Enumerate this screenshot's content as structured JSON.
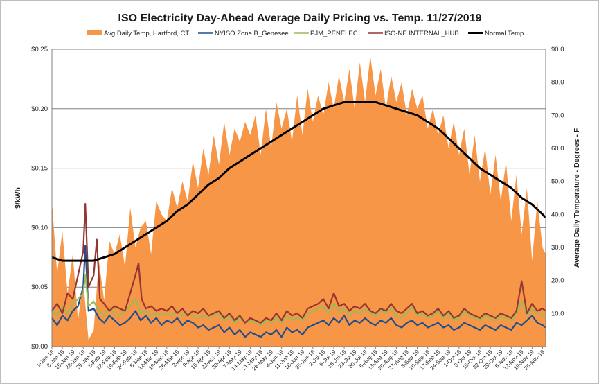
{
  "chart_data": {
    "type": "line",
    "title": "ISO Electricity Day-Ahead Average Daily Pricing vs. Temp. 11/27/2019",
    "ylabel": "$/kWh",
    "y2label": "Average Daily Temperature - Degrees - F",
    "ylim": [
      0,
      0.25
    ],
    "y2lim": [
      0,
      90
    ],
    "yticks": [
      "$0.00",
      "$0.05",
      "$0.10",
      "$0.15",
      "$0.20",
      "$0.25"
    ],
    "y2ticks": [
      "-",
      "10.0",
      "20.0",
      "30.0",
      "40.0",
      "50.0",
      "60.0",
      "70.0",
      "80.0",
      "90.0"
    ],
    "grid": true,
    "legend_position": "top",
    "x_tick_labels": [
      "1-Jan-19",
      "8-Jan-19",
      "15-Jan-19",
      "22-Jan-19",
      "29-Jan-19",
      "5-Feb-19",
      "12-Feb-19",
      "19-Feb-19",
      "26-Feb-19",
      "5-Mar-19",
      "12-Mar-19",
      "19-Mar-19",
      "26-Mar-19",
      "2-Apr-19",
      "9-Apr-19",
      "16-Apr-19",
      "23-Apr-19",
      "30-Apr-19",
      "7-May-19",
      "14-May-19",
      "21-May-19",
      "28-May-19",
      "4-Jun-19",
      "11-Jun-19",
      "18-Jun-19",
      "25-Jun-19",
      "2-Jul-19",
      "9-Jul-19",
      "16-Jul-19",
      "23-Jul-19",
      "30-Jul-19",
      "6-Aug-19",
      "13-Aug-19",
      "20-Aug-19",
      "27-Aug-19",
      "3-Sep-19",
      "10-Sep-19",
      "17-Sep-19",
      "24-Sep-19",
      "1-Oct-19",
      "8-Oct-19",
      "15-Oct-19",
      "22-Oct-19",
      "29-Oct-19",
      "5-Nov-19",
      "12-Nov-19",
      "19-Nov-19",
      "26-Nov-19"
    ],
    "x_range": [
      "1-Jan-19",
      "27-Nov-19"
    ],
    "series": [
      {
        "name": "Avg Daily Temp, Hartford, CT",
        "kind": "area",
        "axis": "right",
        "color": "#f79646",
        "x_weeks": [
          0,
          0.5,
          1,
          1.5,
          2,
          2.5,
          3,
          3.5,
          4,
          4.5,
          5,
          5.5,
          6,
          6.5,
          7,
          7.5,
          8,
          8.5,
          9,
          9.5,
          10,
          10.5,
          11,
          11.5,
          12,
          12.5,
          13,
          13.5,
          14,
          14.5,
          15,
          15.5,
          16,
          16.5,
          17,
          17.5,
          18,
          18.5,
          19,
          19.5,
          20,
          20.5,
          21,
          21.5,
          22,
          22.5,
          23,
          23.5,
          24,
          24.5,
          25,
          25.5,
          26,
          26.5,
          27,
          27.5,
          28,
          28.5,
          29,
          29.5,
          30,
          30.5,
          31,
          31.5,
          32,
          32.5,
          33,
          33.5,
          34,
          34.5,
          35,
          35.5,
          36,
          36.5,
          37,
          37.5,
          38,
          38.5,
          39,
          39.5,
          40,
          40.5,
          41,
          41.5,
          42,
          42.5,
          43,
          43.5,
          44,
          44.5,
          45,
          45.5,
          46,
          46.5,
          47,
          47.3
        ],
        "values": [
          44,
          22,
          35,
          16,
          28,
          8,
          20,
          2,
          5,
          26,
          14,
          32,
          28,
          34,
          24,
          42,
          30,
          36,
          38,
          28,
          44,
          40,
          38,
          48,
          42,
          50,
          44,
          56,
          48,
          60,
          52,
          64,
          55,
          68,
          58,
          66,
          62,
          68,
          64,
          70,
          58,
          72,
          60,
          74,
          66,
          72,
          62,
          76,
          64,
          78,
          68,
          76,
          70,
          80,
          72,
          82,
          74,
          84,
          72,
          86,
          74,
          88,
          76,
          84,
          72,
          82,
          74,
          80,
          70,
          78,
          72,
          76,
          66,
          72,
          64,
          70,
          60,
          68,
          58,
          66,
          52,
          64,
          50,
          60,
          46,
          58,
          44,
          56,
          38,
          52,
          34,
          48,
          26,
          44,
          30,
          28
        ]
      },
      {
        "name": "NYISO Zone B_Genesee",
        "kind": "line",
        "axis": "left",
        "color": "#1f4e8c",
        "x_weeks": [
          0,
          0.5,
          1,
          1.5,
          2,
          2.5,
          3,
          3.2,
          3.5,
          4,
          4.5,
          5,
          5.5,
          6,
          6.5,
          7,
          7.5,
          8,
          8.5,
          9,
          9.5,
          10,
          10.5,
          11,
          11.5,
          12,
          12.5,
          13,
          13.5,
          14,
          14.5,
          15,
          15.5,
          16,
          16.5,
          17,
          17.5,
          18,
          18.5,
          19,
          19.5,
          20,
          20.5,
          21,
          21.5,
          22,
          22.5,
          23,
          23.5,
          24,
          24.5,
          25,
          25.5,
          26,
          26.5,
          27,
          27.5,
          28,
          28.5,
          29,
          29.5,
          30,
          30.5,
          31,
          31.5,
          32,
          32.5,
          33,
          33.5,
          34,
          34.5,
          35,
          35.5,
          36,
          36.5,
          37,
          37.5,
          38,
          38.5,
          39,
          39.5,
          40,
          40.5,
          41,
          41.5,
          42,
          42.5,
          43,
          43.5,
          44,
          44.5,
          45,
          45.5,
          46,
          46.5,
          47,
          47.3
        ],
        "values": [
          0.024,
          0.018,
          0.026,
          0.022,
          0.03,
          0.034,
          0.05,
          0.085,
          0.03,
          0.032,
          0.024,
          0.02,
          0.026,
          0.022,
          0.018,
          0.02,
          0.024,
          0.03,
          0.022,
          0.026,
          0.02,
          0.024,
          0.018,
          0.022,
          0.02,
          0.024,
          0.018,
          0.022,
          0.02,
          0.016,
          0.018,
          0.014,
          0.016,
          0.018,
          0.012,
          0.016,
          0.01,
          0.014,
          0.008,
          0.012,
          0.01,
          0.008,
          0.012,
          0.01,
          0.014,
          0.008,
          0.016,
          0.012,
          0.014,
          0.01,
          0.016,
          0.018,
          0.02,
          0.022,
          0.018,
          0.024,
          0.02,
          0.026,
          0.018,
          0.022,
          0.02,
          0.024,
          0.02,
          0.018,
          0.022,
          0.02,
          0.024,
          0.018,
          0.016,
          0.02,
          0.022,
          0.018,
          0.02,
          0.016,
          0.018,
          0.02,
          0.016,
          0.018,
          0.014,
          0.016,
          0.02,
          0.018,
          0.016,
          0.014,
          0.018,
          0.016,
          0.014,
          0.018,
          0.016,
          0.014,
          0.02,
          0.018,
          0.022,
          0.026,
          0.02,
          0.018,
          0.016
        ]
      },
      {
        "name": "PJM_PENELEC",
        "kind": "line",
        "axis": "left",
        "color": "#9bbb59",
        "x_weeks": [
          0,
          0.5,
          1,
          1.5,
          2,
          2.5,
          3,
          3.2,
          3.5,
          4,
          4.5,
          5,
          5.5,
          6,
          6.5,
          7,
          7.5,
          8,
          8.5,
          9,
          9.5,
          10,
          10.5,
          11,
          11.5,
          12,
          12.5,
          13,
          13.5,
          14,
          14.5,
          15,
          15.5,
          16,
          16.5,
          17,
          17.5,
          18,
          18.5,
          19,
          19.5,
          20,
          20.5,
          21,
          21.5,
          22,
          22.5,
          23,
          23.5,
          24,
          24.5,
          25,
          25.5,
          26,
          26.5,
          27,
          27.5,
          28,
          28.5,
          29,
          29.5,
          30,
          30.5,
          31,
          31.5,
          32,
          32.5,
          33,
          33.5,
          34,
          34.5,
          35,
          35.5,
          36,
          36.5,
          37,
          37.5,
          38,
          38.5,
          39,
          39.5,
          40,
          40.5,
          41,
          41.5,
          42,
          42.5,
          43,
          43.5,
          44,
          44.5,
          45,
          45.5,
          46,
          46.5,
          47,
          47.3
        ],
        "values": [
          0.03,
          0.026,
          0.034,
          0.028,
          0.036,
          0.04,
          0.045,
          0.06,
          0.034,
          0.038,
          0.03,
          0.026,
          0.032,
          0.028,
          0.026,
          0.03,
          0.034,
          0.04,
          0.028,
          0.03,
          0.026,
          0.028,
          0.026,
          0.028,
          0.026,
          0.03,
          0.026,
          0.028,
          0.026,
          0.024,
          0.026,
          0.024,
          0.026,
          0.028,
          0.022,
          0.026,
          0.02,
          0.024,
          0.02,
          0.022,
          0.02,
          0.018,
          0.022,
          0.02,
          0.024,
          0.02,
          0.026,
          0.022,
          0.024,
          0.022,
          0.028,
          0.03,
          0.032,
          0.034,
          0.028,
          0.036,
          0.03,
          0.032,
          0.026,
          0.03,
          0.028,
          0.032,
          0.028,
          0.026,
          0.03,
          0.028,
          0.032,
          0.026,
          0.024,
          0.028,
          0.034,
          0.026,
          0.028,
          0.024,
          0.026,
          0.03,
          0.024,
          0.028,
          0.022,
          0.024,
          0.03,
          0.026,
          0.024,
          0.022,
          0.026,
          0.024,
          0.022,
          0.026,
          0.024,
          0.022,
          0.028,
          0.038,
          0.026,
          0.032,
          0.028,
          0.026,
          0.024
        ]
      },
      {
        "name": "ISO-NE INTERNAL_HUB",
        "kind": "line",
        "axis": "left",
        "color": "#943634",
        "x_weeks": [
          0,
          0.5,
          1,
          1.5,
          2,
          2.5,
          3,
          3.2,
          3.5,
          4,
          4.3,
          4.6,
          5,
          5.5,
          6,
          6.5,
          7,
          7.5,
          8,
          8.3,
          8.6,
          9,
          9.5,
          10,
          10.5,
          11,
          11.5,
          12,
          12.5,
          13,
          13.5,
          14,
          14.5,
          15,
          15.5,
          16,
          16.5,
          17,
          17.5,
          18,
          18.5,
          19,
          19.5,
          20,
          20.5,
          21,
          21.5,
          22,
          22.5,
          23,
          23.5,
          24,
          24.5,
          25,
          25.5,
          26,
          26.5,
          27,
          27.5,
          28,
          28.5,
          29,
          29.5,
          30,
          30.5,
          31,
          31.5,
          32,
          32.5,
          33,
          33.5,
          34,
          34.5,
          35,
          35.5,
          36,
          36.5,
          37,
          37.5,
          38,
          38.5,
          39,
          39.5,
          40,
          40.5,
          41,
          41.5,
          42,
          42.5,
          43,
          43.5,
          44,
          44.5,
          45,
          45.5,
          46,
          46.5,
          47,
          47.3
        ],
        "values": [
          0.03,
          0.036,
          0.028,
          0.045,
          0.04,
          0.06,
          0.08,
          0.12,
          0.05,
          0.06,
          0.09,
          0.04,
          0.036,
          0.03,
          0.034,
          0.032,
          0.03,
          0.045,
          0.06,
          0.07,
          0.04,
          0.032,
          0.034,
          0.03,
          0.032,
          0.03,
          0.034,
          0.028,
          0.032,
          0.026,
          0.03,
          0.028,
          0.032,
          0.026,
          0.028,
          0.03,
          0.024,
          0.028,
          0.022,
          0.026,
          0.02,
          0.024,
          0.022,
          0.02,
          0.024,
          0.022,
          0.028,
          0.022,
          0.03,
          0.026,
          0.028,
          0.024,
          0.032,
          0.034,
          0.036,
          0.04,
          0.032,
          0.045,
          0.034,
          0.036,
          0.03,
          0.034,
          0.032,
          0.036,
          0.03,
          0.028,
          0.032,
          0.03,
          0.036,
          0.03,
          0.028,
          0.032,
          0.036,
          0.028,
          0.03,
          0.026,
          0.028,
          0.032,
          0.026,
          0.03,
          0.024,
          0.026,
          0.032,
          0.028,
          0.026,
          0.024,
          0.028,
          0.026,
          0.024,
          0.028,
          0.026,
          0.024,
          0.03,
          0.055,
          0.028,
          0.036,
          0.03,
          0.032,
          0.03
        ]
      },
      {
        "name": "Normal Temp.",
        "kind": "line",
        "axis": "right",
        "color": "#000000",
        "x_weeks": [
          0,
          1,
          2,
          3,
          4,
          5,
          6,
          7,
          8,
          9,
          10,
          11,
          12,
          13,
          14,
          15,
          16,
          17,
          18,
          19,
          20,
          21,
          22,
          23,
          24,
          25,
          26,
          27,
          28,
          29,
          30,
          31,
          32,
          33,
          34,
          35,
          36,
          37,
          38,
          39,
          40,
          41,
          42,
          43,
          44,
          45,
          46,
          47,
          47.3
        ],
        "values": [
          27,
          26,
          26,
          26,
          26,
          27,
          28,
          30,
          32,
          34,
          36,
          38,
          41,
          43,
          46,
          49,
          51,
          54,
          56,
          58,
          60,
          62,
          64,
          66,
          68,
          70,
          72,
          73,
          74,
          74,
          74,
          74,
          73,
          72,
          71,
          70,
          68,
          66,
          63,
          60,
          57,
          54,
          52,
          50,
          48,
          45,
          43,
          40,
          39
        ]
      }
    ]
  }
}
